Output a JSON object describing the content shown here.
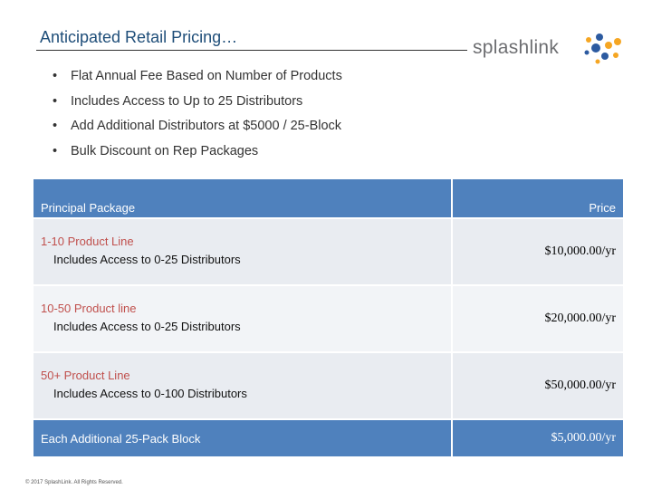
{
  "header": {
    "title": "Anticipated Retail Pricing…",
    "logo": "splashlink"
  },
  "bullets": [
    "Flat Annual Fee Based on Number of Products",
    "Includes Access to Up to 25 Distributors",
    "Add Additional Distributors at $5000 / 25-Block",
    "Bulk Discount on Rep Packages"
  ],
  "table": {
    "columns": [
      "Principal Package",
      "Price"
    ],
    "rows": [
      {
        "title": "1-10 Product Line",
        "detail": "Includes Access to 0-25 Distributors",
        "price": "$10,000.00/yr"
      },
      {
        "title": "10-50 Product line",
        "detail": "Includes Access to 0-25 Distributors",
        "price": "$20,000.00/yr"
      },
      {
        "title": "50+ Product Line",
        "detail": "Includes Access to 0-100 Distributors",
        "price": "$50,000.00/yr"
      },
      {
        "title": "Each Additional 25-Pack Block",
        "price": "$5,000.00/yr"
      }
    ]
  },
  "footer": "© 2017 SplashLink. All Rights Reserved."
}
